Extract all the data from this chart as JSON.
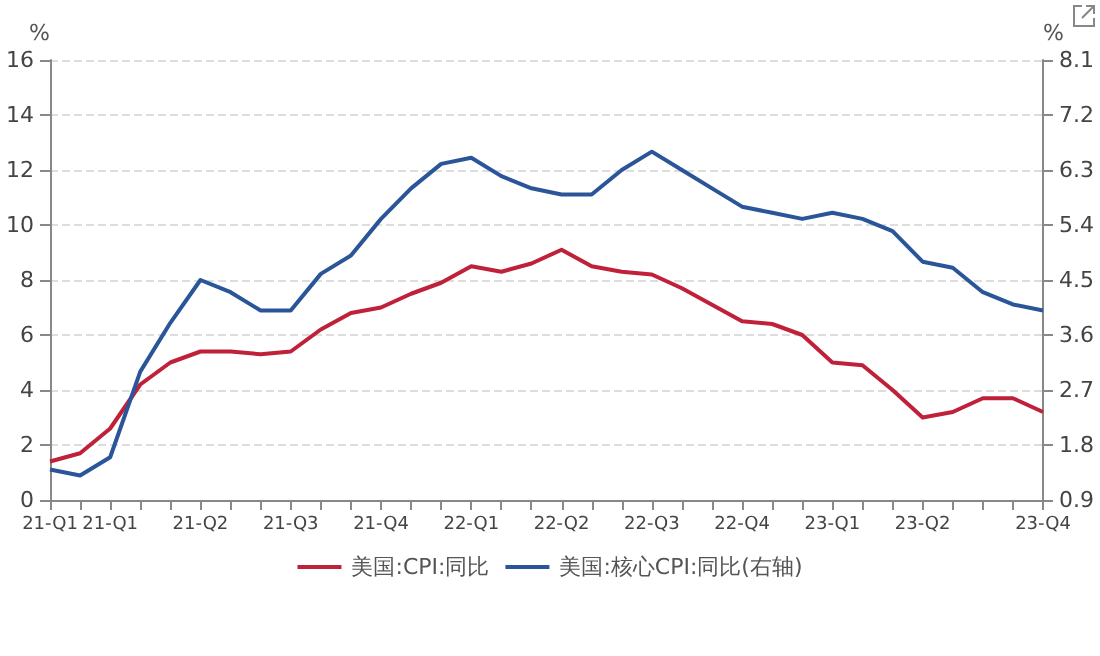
{
  "chart_data": {
    "type": "line",
    "ylabel": "%",
    "y2label": "%",
    "categories": [
      "21-Q1",
      null,
      "21-Q1",
      null,
      null,
      "21-Q2",
      null,
      null,
      "21-Q3",
      null,
      null,
      "21-Q4",
      null,
      null,
      "22-Q1",
      null,
      null,
      "22-Q2",
      null,
      null,
      "22-Q3",
      null,
      null,
      "22-Q4",
      null,
      null,
      "23-Q1",
      null,
      null,
      "23-Q2",
      null,
      null,
      null,
      "23-Q4"
    ],
    "series": [
      {
        "name": "美国:CPI:同比",
        "color": "#c0213a",
        "values": [
          1.4,
          1.7,
          2.6,
          4.2,
          5.0,
          5.4,
          5.4,
          5.3,
          5.4,
          6.2,
          6.8,
          7.0,
          7.5,
          7.9,
          8.5,
          8.3,
          8.6,
          9.1,
          8.5,
          8.3,
          8.2,
          7.7,
          7.1,
          6.5,
          6.4,
          6.0,
          5.0,
          4.9,
          4.0,
          3.0,
          3.2,
          3.7,
          3.7,
          3.2
        ]
      },
      {
        "name": "美国:核心CPI:同比(右轴)",
        "color": "#2a5599",
        "axis": "y2",
        "values": [
          1.4,
          1.3,
          1.6,
          3.0,
          3.8,
          4.5,
          4.3,
          4.0,
          4.0,
          4.6,
          4.9,
          5.5,
          6.0,
          6.4,
          6.5,
          6.2,
          6.0,
          5.9,
          5.9,
          6.3,
          6.6,
          6.3,
          6.0,
          5.7,
          5.6,
          5.5,
          5.6,
          5.5,
          5.3,
          4.8,
          4.7,
          4.3,
          4.1,
          4.0
        ]
      }
    ],
    "ylim": [
      0,
      16
    ],
    "yticks": [
      0,
      2,
      4,
      6,
      8,
      10,
      12,
      14,
      16
    ],
    "y2lim": [
      0.9,
      8.1
    ],
    "y2ticks": [
      0.9,
      1.8,
      2.7,
      3.6,
      4.5,
      5.4,
      6.3,
      7.2,
      8.1
    ],
    "grid": "y",
    "legend": "bottom",
    "marker": "none",
    "line_style": "solid"
  }
}
